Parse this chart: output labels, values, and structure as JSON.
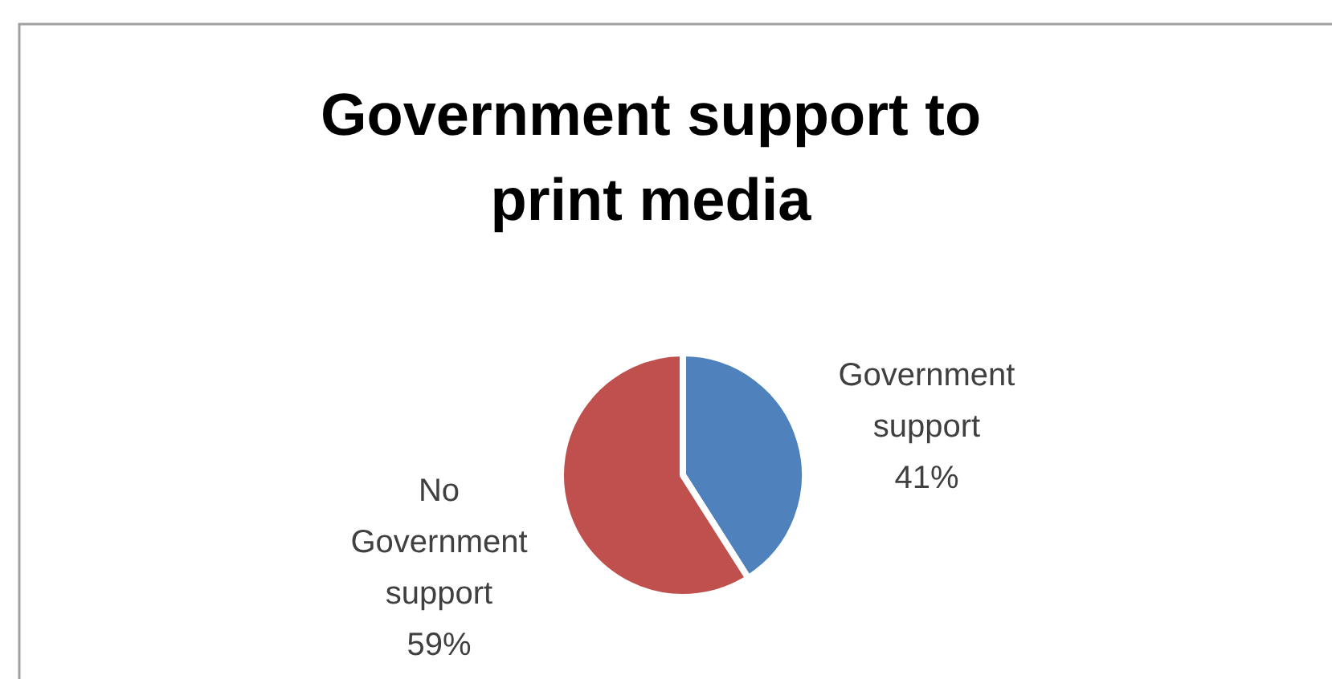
{
  "chart_data": {
    "type": "pie",
    "title": "Government support to print media",
    "categories": [
      "Government support",
      "No Government support"
    ],
    "values": [
      41,
      59
    ],
    "colors": [
      "#4f81bd",
      "#c0504d"
    ],
    "value_labels": [
      "41%",
      "59%"
    ]
  }
}
